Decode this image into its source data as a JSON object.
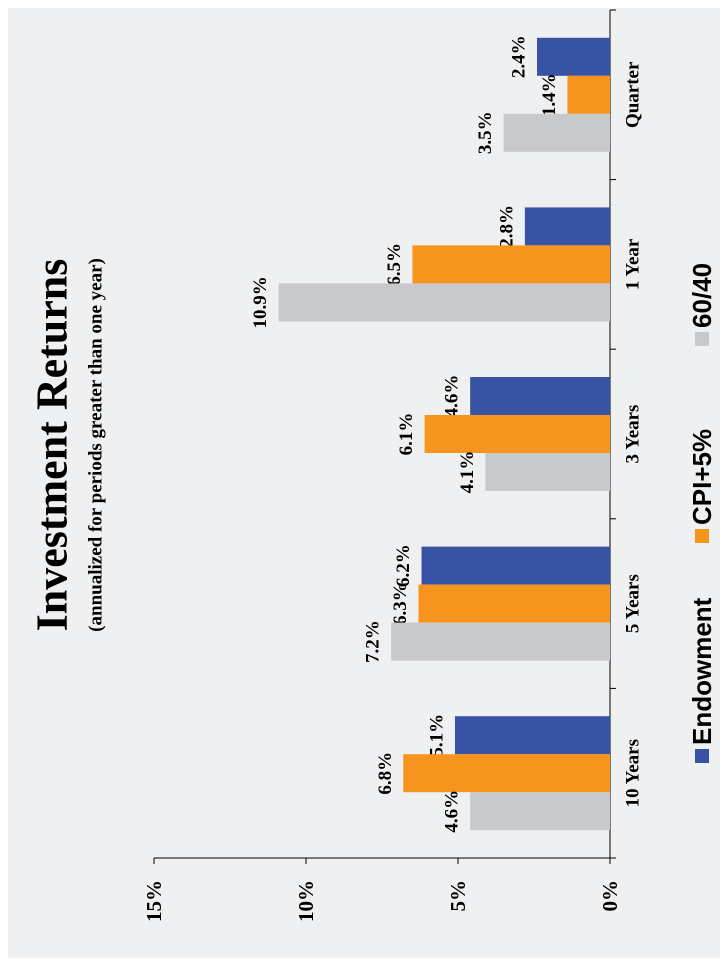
{
  "chart_data": {
    "type": "bar",
    "orientation": "rotated-90",
    "title": "Investment Returns",
    "subtitle": "(annualized for periods greater than one year)",
    "categories": [
      "Quarter",
      "1 Year",
      "3 Years",
      "5 Years",
      "10 Years"
    ],
    "series": [
      {
        "name": "Endowment",
        "color": "#3853a4",
        "values": [
          2.4,
          2.8,
          4.6,
          6.2,
          5.1
        ],
        "labels": [
          "2.4%",
          "2.8%",
          "4.6%",
          "6.2%",
          "5.1%"
        ]
      },
      {
        "name": "CPI+5%",
        "color": "#f7941d",
        "values": [
          1.4,
          6.5,
          6.1,
          6.3,
          6.8
        ],
        "labels": [
          "1.4%",
          "6.5%",
          "6.1%",
          "6.3%",
          "6.8%"
        ]
      },
      {
        "name": "60/40",
        "color": "#c8c9cb",
        "values": [
          3.5,
          10.9,
          4.1,
          7.2,
          4.6
        ],
        "labels": [
          "3.5%",
          "10.9%",
          "4.1%",
          "7.2%",
          "4.6%"
        ]
      }
    ],
    "ylim": [
      0,
      15
    ],
    "yticks": [
      0,
      5,
      10,
      15
    ],
    "ytick_labels": [
      "0%",
      "5%",
      "10%",
      "15%"
    ],
    "grid": false,
    "legend_position": "bottom"
  }
}
